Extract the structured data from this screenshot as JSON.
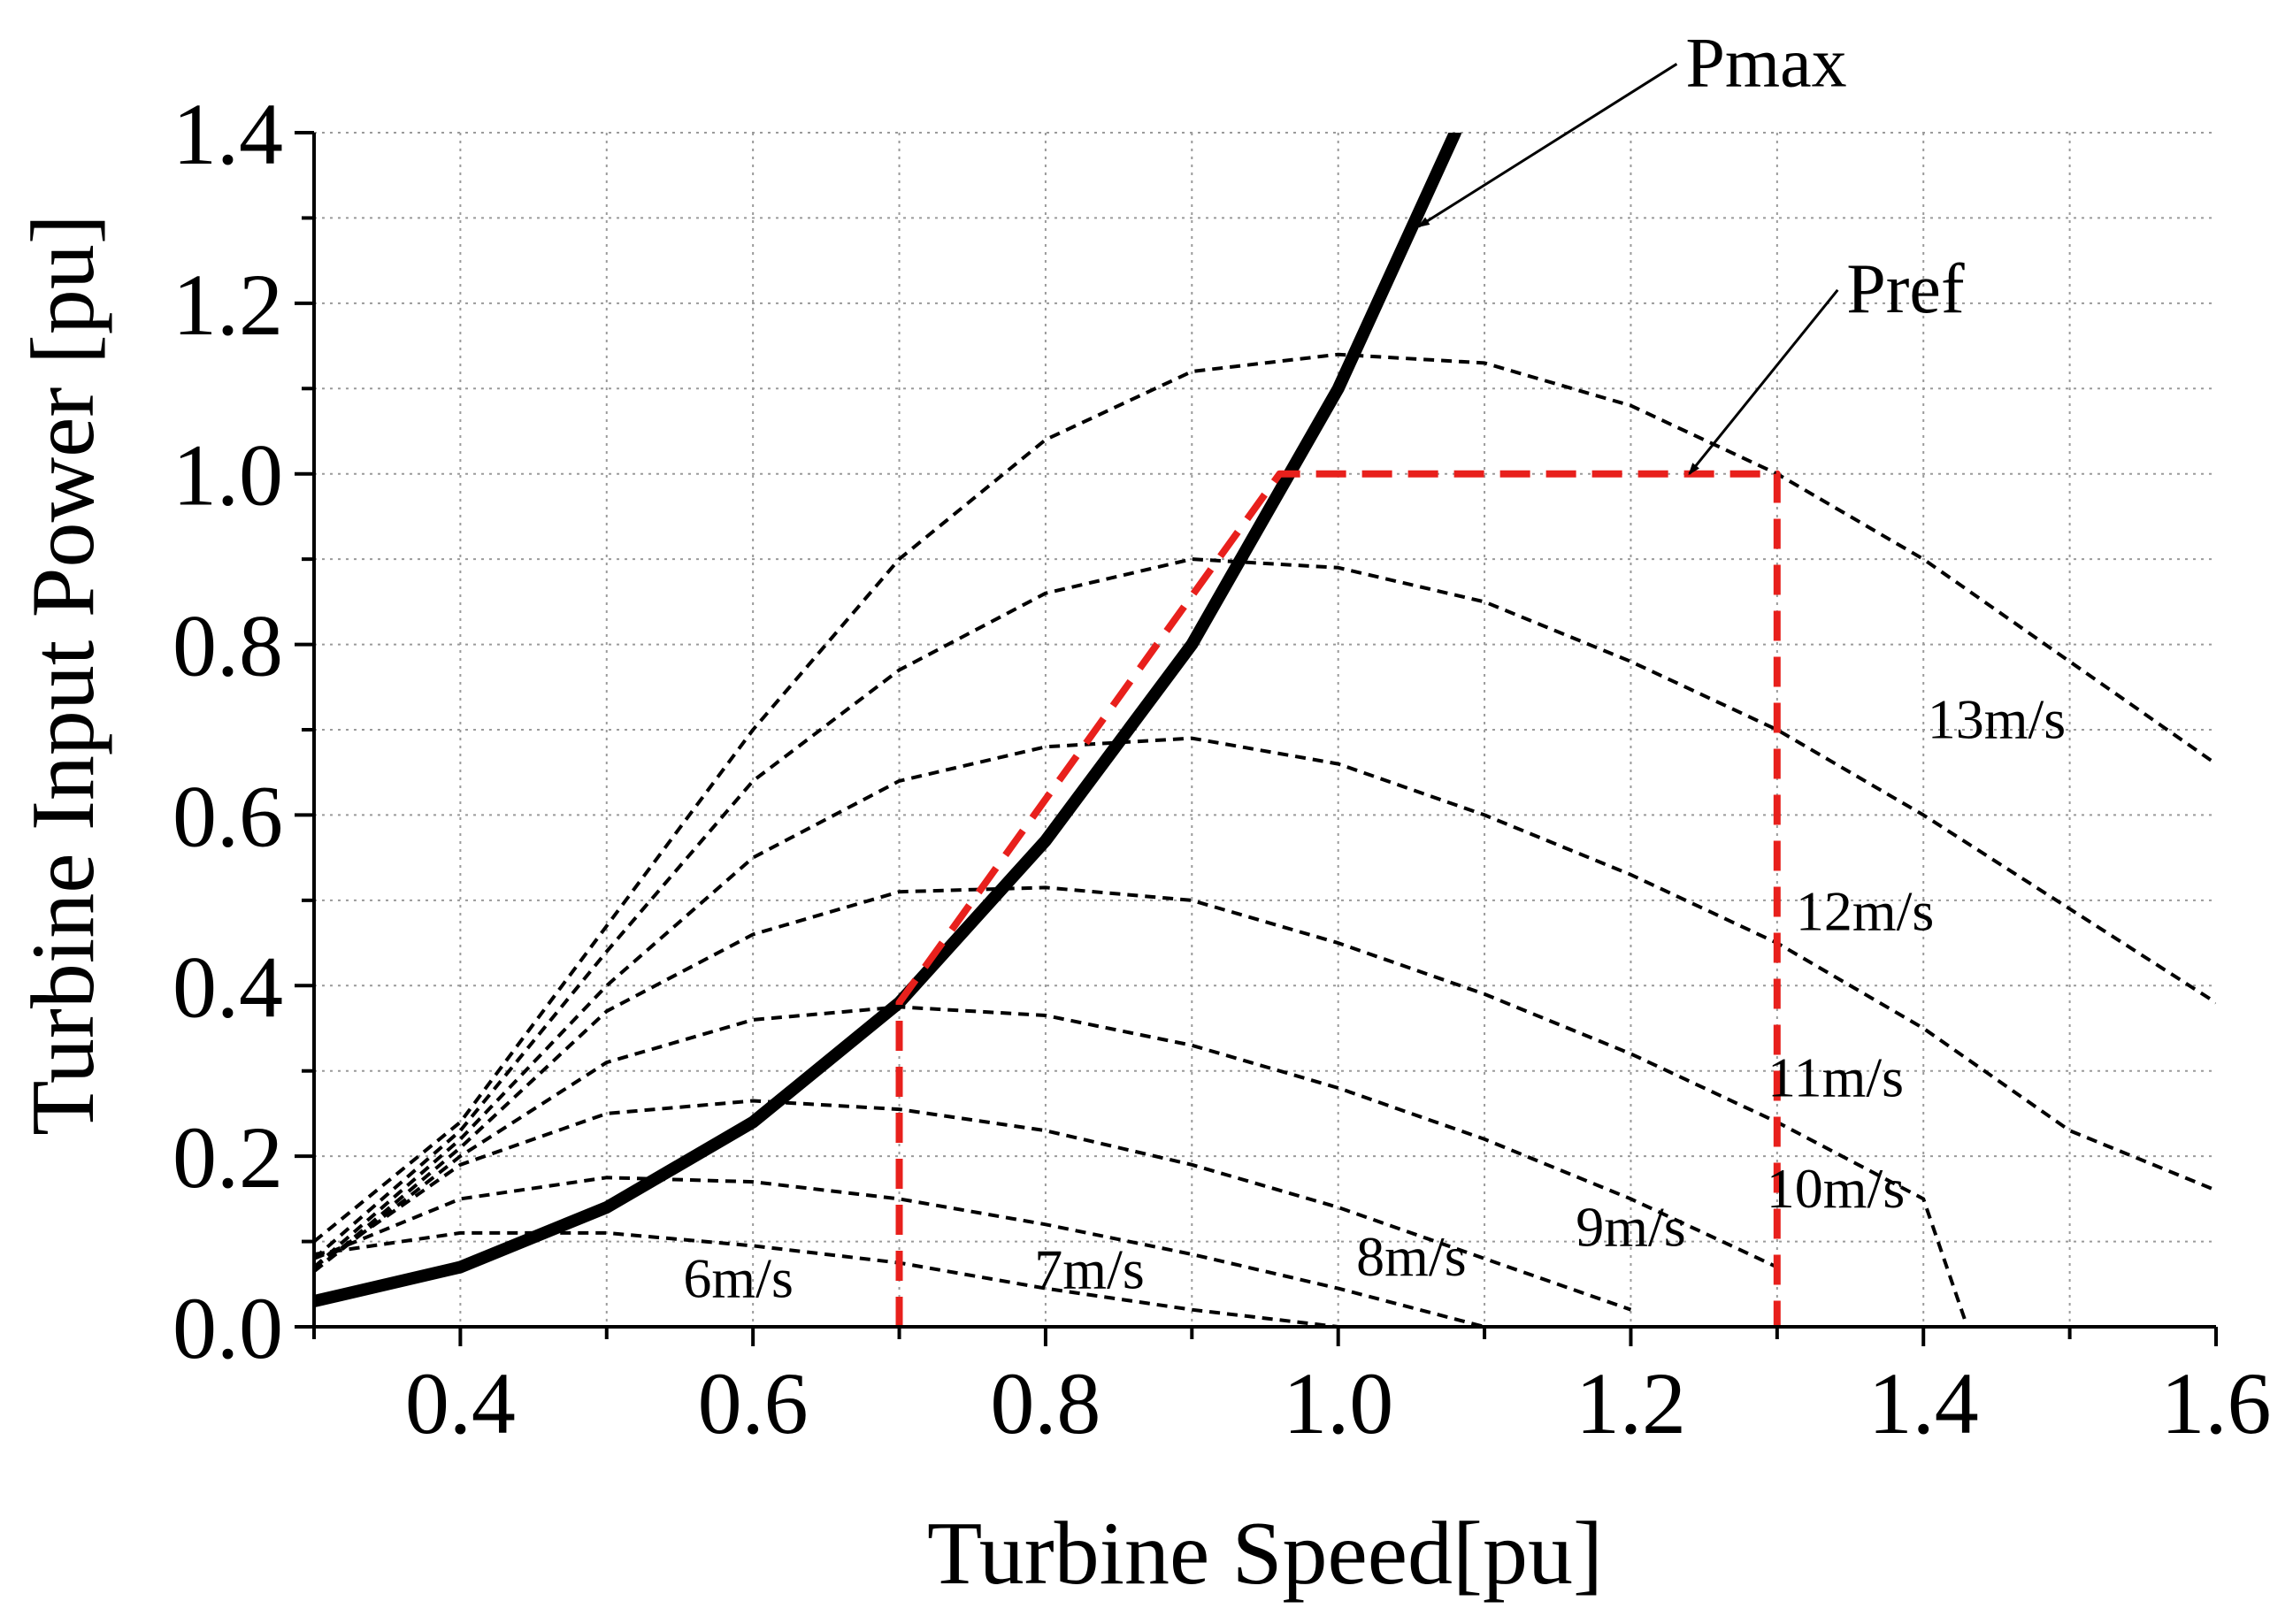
{
  "chart_data": {
    "type": "line",
    "title": "",
    "xlabel": "Turbine Speed[pu]",
    "ylabel": "Turbine Input Power [pu]",
    "xlim": [
      0.3,
      1.6
    ],
    "ylim": [
      0.0,
      1.4
    ],
    "x_ticks": [
      "0.4",
      "0.6",
      "0.8",
      "1.0",
      "1.2",
      "1.4",
      "1.6"
    ],
    "y_ticks": [
      "0.0",
      "0.2",
      "0.4",
      "0.6",
      "0.8",
      "1.0",
      "1.2",
      "1.4"
    ],
    "grid": true,
    "series": [
      {
        "name": "6m/s",
        "style": "dashed",
        "color": "#000000",
        "x": [
          0.3,
          0.4,
          0.5,
          0.6,
          0.7,
          0.8,
          0.9,
          1.0
        ],
        "y": [
          0.085,
          0.11,
          0.11,
          0.095,
          0.075,
          0.045,
          0.02,
          0.0
        ]
      },
      {
        "name": "7m/s",
        "style": "dashed",
        "color": "#000000",
        "x": [
          0.3,
          0.4,
          0.5,
          0.6,
          0.7,
          0.8,
          0.9,
          1.0,
          1.1
        ],
        "y": [
          0.08,
          0.15,
          0.175,
          0.17,
          0.15,
          0.12,
          0.085,
          0.045,
          0.0
        ]
      },
      {
        "name": "8m/s",
        "style": "dashed",
        "color": "#000000",
        "x": [
          0.3,
          0.4,
          0.5,
          0.6,
          0.7,
          0.8,
          0.9,
          1.0,
          1.1,
          1.2
        ],
        "y": [
          0.07,
          0.19,
          0.25,
          0.265,
          0.255,
          0.23,
          0.19,
          0.14,
          0.08,
          0.02
        ]
      },
      {
        "name": "9m/s",
        "style": "dashed",
        "color": "#000000",
        "x": [
          0.3,
          0.4,
          0.5,
          0.6,
          0.7,
          0.8,
          0.9,
          1.0,
          1.1,
          1.2,
          1.3
        ],
        "y": [
          0.065,
          0.2,
          0.31,
          0.36,
          0.375,
          0.365,
          0.33,
          0.28,
          0.22,
          0.15,
          0.07
        ]
      },
      {
        "name": "10m/s",
        "style": "dashed",
        "color": "#000000",
        "x": [
          0.3,
          0.4,
          0.5,
          0.6,
          0.7,
          0.8,
          0.9,
          1.0,
          1.1,
          1.2,
          1.3,
          1.4,
          1.43
        ],
        "y": [
          0.065,
          0.21,
          0.37,
          0.46,
          0.51,
          0.515,
          0.5,
          0.45,
          0.39,
          0.32,
          0.24,
          0.15,
          0.0
        ]
      },
      {
        "name": "11m/s",
        "style": "dashed",
        "color": "#000000",
        "x": [
          0.3,
          0.4,
          0.5,
          0.6,
          0.7,
          0.8,
          0.9,
          1.0,
          1.1,
          1.2,
          1.3,
          1.4,
          1.5,
          1.6
        ],
        "y": [
          0.07,
          0.22,
          0.4,
          0.55,
          0.64,
          0.68,
          0.69,
          0.66,
          0.6,
          0.53,
          0.45,
          0.35,
          0.23,
          0.16
        ]
      },
      {
        "name": "12m/s",
        "style": "dashed",
        "color": "#000000",
        "x": [
          0.3,
          0.4,
          0.5,
          0.6,
          0.7,
          0.8,
          0.9,
          1.0,
          1.1,
          1.2,
          1.3,
          1.4,
          1.5,
          1.6
        ],
        "y": [
          0.08,
          0.23,
          0.44,
          0.64,
          0.77,
          0.86,
          0.9,
          0.89,
          0.85,
          0.78,
          0.7,
          0.6,
          0.49,
          0.38
        ]
      },
      {
        "name": "13m/s",
        "style": "dashed",
        "color": "#000000",
        "x": [
          0.3,
          0.4,
          0.5,
          0.6,
          0.7,
          0.8,
          0.9,
          1.0,
          1.1,
          1.2,
          1.3,
          1.4,
          1.5,
          1.6
        ],
        "y": [
          0.1,
          0.24,
          0.47,
          0.7,
          0.9,
          1.04,
          1.12,
          1.14,
          1.13,
          1.08,
          1.0,
          0.9,
          0.78,
          0.66
        ]
      },
      {
        "name": "Pmax",
        "style": "solid-thick",
        "color": "#000000",
        "x": [
          0.3,
          0.4,
          0.5,
          0.6,
          0.7,
          0.8,
          0.9,
          1.0,
          1.08
        ],
        "y": [
          0.03,
          0.07,
          0.14,
          0.24,
          0.38,
          0.57,
          0.8,
          1.1,
          1.4
        ]
      },
      {
        "name": "Pref",
        "style": "dashed-red",
        "color": "#e8201c",
        "x": [
          0.7,
          0.7,
          0.96,
          1.3,
          1.3
        ],
        "y": [
          0.0,
          0.38,
          1.0,
          1.0,
          0.0
        ]
      }
    ],
    "curve_labels": [
      {
        "text": "6m/s",
        "x": 0.59,
        "y": 0.035
      },
      {
        "text": "7m/s",
        "x": 0.83,
        "y": 0.045
      },
      {
        "text": "8m/s",
        "x": 1.05,
        "y": 0.06
      },
      {
        "text": "9m/s",
        "x": 1.2,
        "y": 0.095
      },
      {
        "text": "10m/s",
        "x": 1.34,
        "y": 0.14
      },
      {
        "text": "11m/s",
        "x": 1.34,
        "y": 0.27
      },
      {
        "text": "12m/s",
        "x": 1.36,
        "y": 0.465
      },
      {
        "text": "13m/s",
        "x": 1.45,
        "y": 0.69
      }
    ],
    "annotations": [
      {
        "text": "Pmax",
        "text_x": 1.31,
        "text_y": 1.465,
        "arrow_to_x": 1.055,
        "arrow_to_y": 1.29
      },
      {
        "text": "Pref",
        "text_x": 1.42,
        "text_y": 1.2,
        "arrow_to_x": 1.24,
        "arrow_to_y": 1.0
      }
    ]
  }
}
